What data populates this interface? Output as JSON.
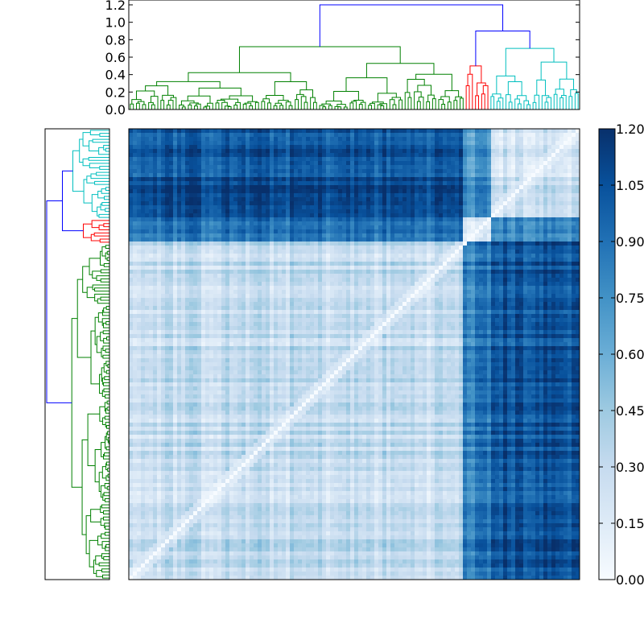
{
  "figure": {
    "background": "#ffffff",
    "axes_color": "#000000"
  },
  "chart_data": [
    {
      "type": "dendrogram",
      "orientation": "top",
      "ylim": [
        0,
        1.2
      ],
      "yticks": [
        0.0,
        0.2,
        0.4,
        0.6,
        0.8,
        1.0,
        1.2
      ],
      "ytick_labels": [
        "0.0",
        "0.2",
        "0.4",
        "0.6",
        "0.8",
        "1.0",
        "1.2"
      ],
      "root_height": 1.2,
      "clusters": [
        {
          "name": "green",
          "color": "#008000",
          "leaf_fraction": 0.745,
          "merge_height": 0.72
        },
        {
          "name": "red",
          "color": "#ff0000",
          "leaf_fraction": 0.055,
          "merge_height": 0.5
        },
        {
          "name": "cyan",
          "color": "#00bfbf",
          "leaf_fraction": 0.2,
          "merge_height": 0.7
        }
      ],
      "link_color_above_threshold": "#0000ff",
      "grid": false
    },
    {
      "type": "dendrogram",
      "orientation": "left",
      "ticks_shown": false,
      "clusters_top_to_bottom": [
        {
          "name": "cyan",
          "color": "#00bfbf",
          "leaf_fraction": 0.2
        },
        {
          "name": "red",
          "color": "#ff0000",
          "leaf_fraction": 0.055
        },
        {
          "name": "green",
          "color": "#008000",
          "leaf_fraction": 0.745
        }
      ],
      "link_color_above_threshold": "#0000ff"
    },
    {
      "type": "heatmap",
      "description_kind": "distance matrix",
      "colormap": "Blues",
      "vmin": 0.0,
      "vmax": 1.2,
      "grid": false,
      "row_order_blocks_top_to_bottom": [
        "cyan",
        "red",
        "green"
      ],
      "column_order_blocks_left_to_right": [
        "green",
        "red",
        "cyan"
      ],
      "block_boundaries_fraction": [
        0.195,
        0.25,
        0.745,
        0.8
      ],
      "block_distances": {
        "cyan-cyan": 0.25,
        "cyan-red": 0.75,
        "cyan-green": 1.05,
        "red-red": 0.15,
        "red-green": 0.85,
        "green-green": 0.3
      },
      "colorbar": {
        "ticks": [
          0.0,
          0.15,
          0.3,
          0.45,
          0.6,
          0.75,
          0.9,
          1.05,
          1.2
        ],
        "tick_labels": [
          "0.00",
          "0.15",
          "0.30",
          "0.45",
          "0.60",
          "0.75",
          "0.90",
          "1.05",
          "1.20"
        ],
        "location": "right"
      }
    }
  ]
}
